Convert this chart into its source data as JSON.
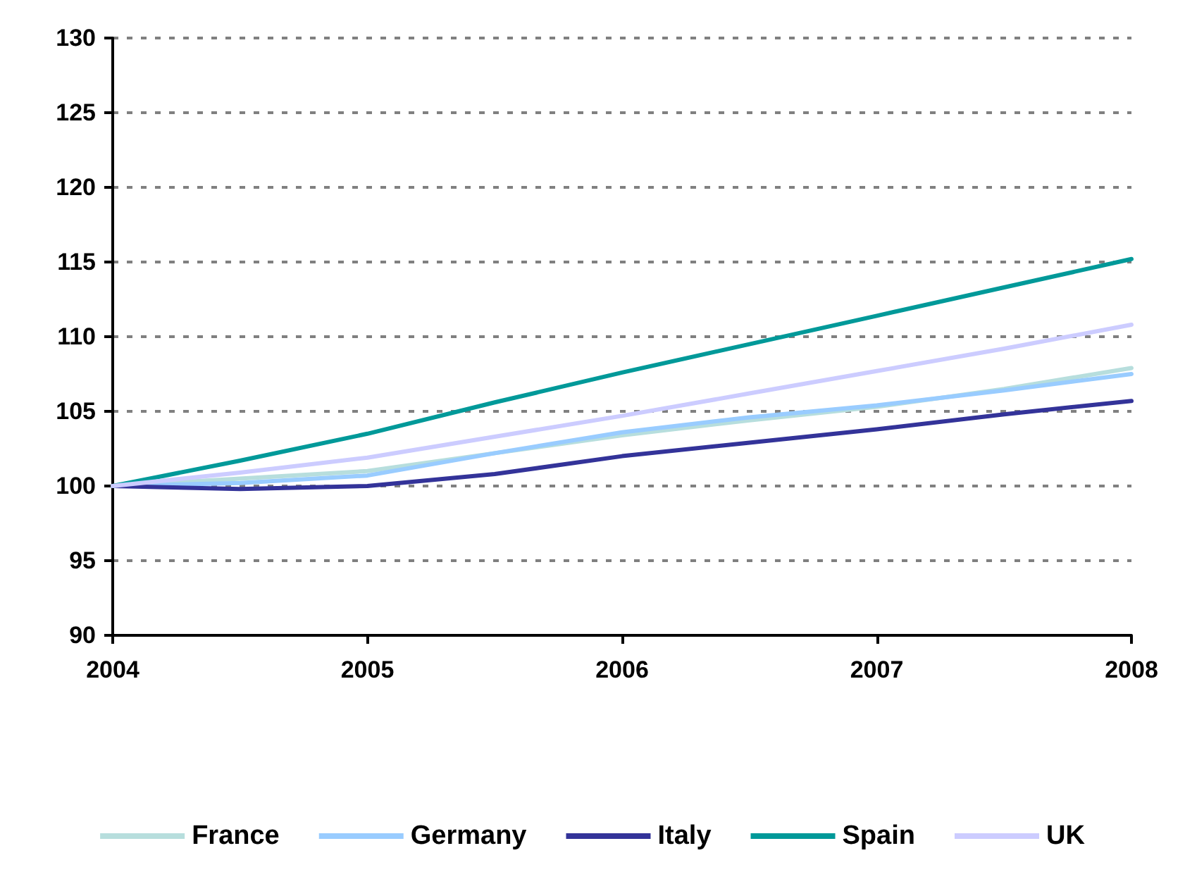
{
  "chart_data": {
    "type": "line",
    "xlim": [
      2004,
      2008
    ],
    "xticks": [
      2004,
      2005,
      2006,
      2007,
      2008
    ],
    "ylim": [
      90,
      130
    ],
    "yticks": [
      90,
      95,
      100,
      105,
      110,
      115,
      120,
      125,
      130
    ],
    "grid": "y",
    "legend": "bottom",
    "marker": "none",
    "line_style": "solid",
    "x": [
      2004,
      2004.5,
      2005,
      2005.5,
      2006,
      2006.5,
      2007,
      2007.5,
      2008
    ],
    "series": [
      {
        "name": "France",
        "color": "#b7dedd",
        "values": [
          100,
          100.5,
          101.0,
          102.2,
          103.4,
          104.4,
          105.3,
          106.5,
          107.9
        ]
      },
      {
        "name": "Germany",
        "color": "#99ccff",
        "values": [
          100,
          100.2,
          100.7,
          102.2,
          103.6,
          104.6,
          105.4,
          106.4,
          107.5
        ]
      },
      {
        "name": "Italy",
        "color": "#333399",
        "values": [
          100,
          99.8,
          100.0,
          100.8,
          102.0,
          102.9,
          103.8,
          104.8,
          105.7
        ]
      },
      {
        "name": "Spain",
        "color": "#009999",
        "values": [
          100,
          101.7,
          103.5,
          105.6,
          107.6,
          109.5,
          111.4,
          113.3,
          115.2
        ]
      },
      {
        "name": "UK",
        "color": "#ccccff",
        "values": [
          100,
          100.9,
          101.9,
          103.3,
          104.7,
          106.2,
          107.7,
          109.2,
          110.8
        ]
      }
    ]
  }
}
